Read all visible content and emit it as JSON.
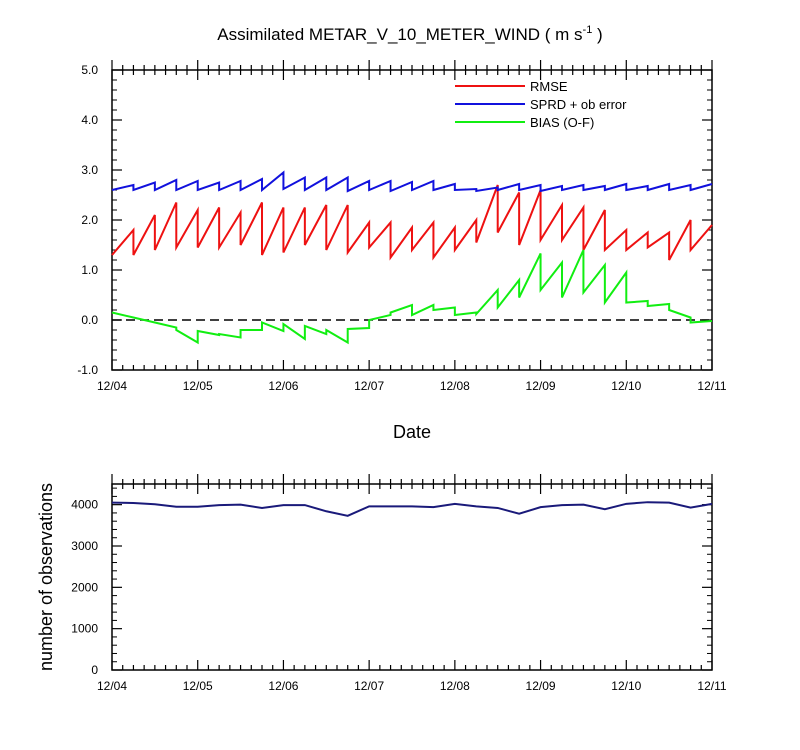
{
  "chart_data": [
    {
      "type": "line",
      "title_main": "Assimilated METAR_V_10_METER_WIND ( m s",
      "title_sup": "-1",
      "title_end": " )",
      "xlabel": "Date",
      "ylabel": "",
      "xlim": [
        0,
        7
      ],
      "ylim": [
        -1.0,
        5.0
      ],
      "yticks": [
        -1.0,
        0.0,
        1.0,
        2.0,
        3.0,
        4.0,
        5.0
      ],
      "ytick_labels": [
        "-1.0",
        "0.0",
        "1.0",
        "2.0",
        "3.0",
        "4.0",
        "5.0"
      ],
      "date_labels": [
        "12/04",
        "12/05",
        "12/06",
        "12/07",
        "12/08",
        "12/09",
        "12/10",
        "12/11"
      ],
      "legend_position": "top-right",
      "reference_line": {
        "y": 0,
        "style": "dashed"
      },
      "series": [
        {
          "name": "RMSE",
          "color": "#ee1111",
          "x": [
            0,
            0.25,
            0.25,
            0.5,
            0.5,
            0.75,
            0.75,
            1,
            1,
            1.25,
            1.25,
            1.5,
            1.5,
            1.75,
            1.75,
            2,
            2,
            2.25,
            2.25,
            2.5,
            2.5,
            2.75,
            2.75,
            3,
            3,
            3.25,
            3.25,
            3.5,
            3.5,
            3.75,
            3.75,
            4,
            4,
            4.25,
            4.25,
            4.5,
            4.5,
            4.75,
            4.75,
            5,
            5,
            5.25,
            5.25,
            5.5,
            5.5,
            5.75,
            5.75,
            6,
            6,
            6.25,
            6.25,
            6.5,
            6.5,
            6.75,
            6.75,
            7
          ],
          "values": [
            1.3,
            1.8,
            1.3,
            2.1,
            1.4,
            2.35,
            1.45,
            2.2,
            1.45,
            2.25,
            1.45,
            2.15,
            1.5,
            2.35,
            1.3,
            2.25,
            1.35,
            2.25,
            1.5,
            2.3,
            1.4,
            2.3,
            1.35,
            1.95,
            1.45,
            1.95,
            1.25,
            1.85,
            1.4,
            1.95,
            1.25,
            1.85,
            1.4,
            2.0,
            1.55,
            2.7,
            1.75,
            2.55,
            1.5,
            2.6,
            1.6,
            2.3,
            1.6,
            2.25,
            1.4,
            2.2,
            1.4,
            1.8,
            1.4,
            1.75,
            1.45,
            1.75,
            1.2,
            2.0,
            1.4,
            1.9
          ]
        },
        {
          "name": "SPRD + ob error",
          "color": "#1111dd",
          "x": [
            0,
            0.25,
            0.25,
            0.5,
            0.5,
            0.75,
            0.75,
            1,
            1,
            1.25,
            1.25,
            1.5,
            1.5,
            1.75,
            1.75,
            2,
            2,
            2.25,
            2.25,
            2.5,
            2.5,
            2.75,
            2.75,
            3,
            3,
            3.25,
            3.25,
            3.5,
            3.5,
            3.75,
            3.75,
            4,
            4,
            4.25,
            4.25,
            4.5,
            4.5,
            4.75,
            4.75,
            5,
            5,
            5.25,
            5.25,
            5.5,
            5.5,
            5.75,
            5.75,
            6,
            6,
            6.25,
            6.25,
            6.5,
            6.5,
            6.75,
            6.75,
            7
          ],
          "values": [
            2.6,
            2.7,
            2.6,
            2.75,
            2.6,
            2.8,
            2.6,
            2.78,
            2.6,
            2.75,
            2.6,
            2.78,
            2.6,
            2.82,
            2.6,
            2.95,
            2.62,
            2.85,
            2.6,
            2.85,
            2.6,
            2.85,
            2.58,
            2.78,
            2.6,
            2.78,
            2.58,
            2.76,
            2.6,
            2.78,
            2.6,
            2.72,
            2.6,
            2.62,
            2.58,
            2.65,
            2.6,
            2.72,
            2.6,
            2.7,
            2.58,
            2.68,
            2.6,
            2.7,
            2.6,
            2.68,
            2.6,
            2.72,
            2.6,
            2.68,
            2.6,
            2.72,
            2.6,
            2.7,
            2.6,
            2.72
          ]
        },
        {
          "name": "BIAS (O-F)",
          "color": "#11ee11",
          "x": [
            0,
            0.25,
            0.25,
            0.5,
            0.5,
            0.75,
            0.75,
            1,
            1,
            1.25,
            1.25,
            1.5,
            1.5,
            1.75,
            1.75,
            2,
            2,
            2.25,
            2.25,
            2.5,
            2.5,
            2.75,
            2.75,
            3,
            3,
            3.25,
            3.25,
            3.5,
            3.5,
            3.75,
            3.75,
            4,
            4,
            4.25,
            4.25,
            4.5,
            4.5,
            4.75,
            4.75,
            5,
            5,
            5.25,
            5.25,
            5.5,
            5.5,
            5.75,
            5.75,
            6,
            6,
            6.25,
            6.25,
            6.5,
            6.5,
            6.75,
            6.75,
            7
          ],
          "values": [
            0.15,
            0.05,
            0.05,
            -0.05,
            -0.05,
            -0.15,
            -0.2,
            -0.45,
            -0.22,
            -0.3,
            -0.28,
            -0.35,
            -0.2,
            -0.2,
            -0.05,
            -0.22,
            -0.08,
            -0.38,
            -0.12,
            -0.28,
            -0.2,
            -0.45,
            -0.18,
            -0.16,
            0.0,
            0.1,
            0.15,
            0.3,
            0.1,
            0.3,
            0.2,
            0.25,
            0.1,
            0.15,
            0.12,
            0.6,
            0.25,
            0.8,
            0.45,
            1.33,
            0.6,
            1.15,
            0.45,
            1.4,
            0.55,
            1.1,
            0.35,
            0.95,
            0.35,
            0.38,
            0.28,
            0.32,
            0.2,
            0.05,
            -0.05,
            -0.02
          ]
        }
      ]
    },
    {
      "type": "line",
      "title": "",
      "xlabel": "",
      "ylabel": "number of observations",
      "xlim": [
        0,
        7
      ],
      "ylim": [
        0,
        4500
      ],
      "yticks": [
        0,
        1000,
        2000,
        3000,
        4000
      ],
      "ytick_labels": [
        "0",
        "1000",
        "2000",
        "3000",
        "4000"
      ],
      "date_labels": [
        "12/04",
        "12/05",
        "12/06",
        "12/07",
        "12/08",
        "12/09",
        "12/10",
        "12/11"
      ],
      "series": [
        {
          "name": "number of observations",
          "color": "#1a1a7a",
          "x": [
            0,
            0.25,
            0.5,
            0.75,
            1,
            1.25,
            1.5,
            1.75,
            2,
            2.25,
            2.5,
            2.75,
            3,
            3.25,
            3.5,
            3.75,
            4,
            4.25,
            4.5,
            4.75,
            5,
            5.25,
            5.5,
            5.75,
            6,
            6.25,
            6.5,
            6.75,
            7
          ],
          "values": [
            4050,
            4040,
            4010,
            3950,
            3950,
            3990,
            4000,
            3920,
            3990,
            3990,
            3840,
            3730,
            3960,
            3960,
            3960,
            3940,
            4020,
            3960,
            3920,
            3780,
            3940,
            3990,
            4000,
            3890,
            4020,
            4060,
            4050,
            3930,
            4020
          ]
        }
      ]
    }
  ]
}
